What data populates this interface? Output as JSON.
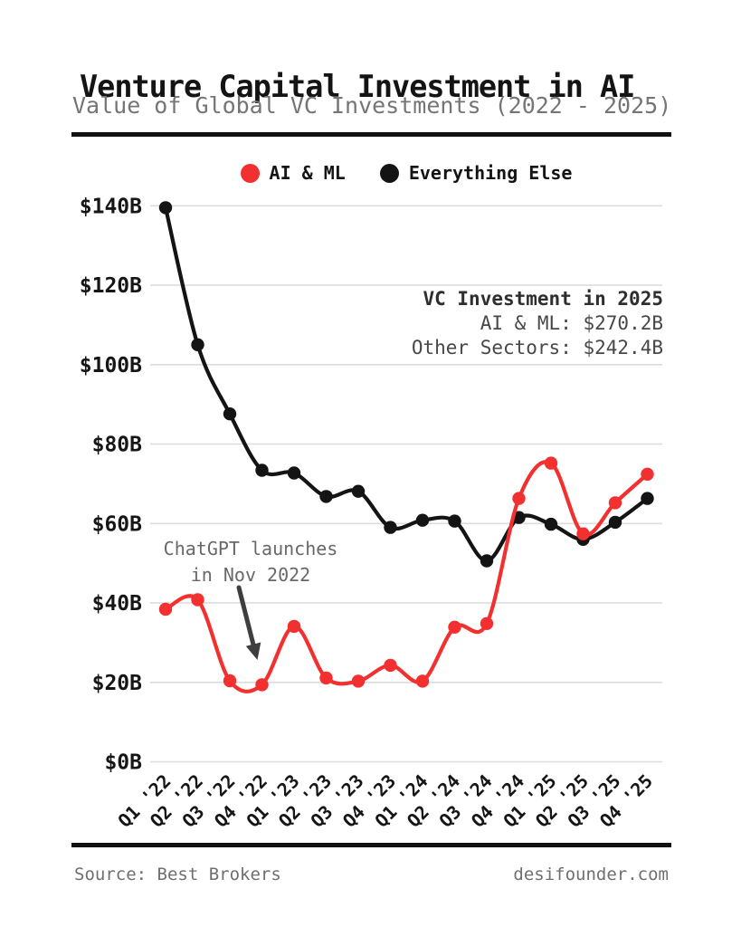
{
  "header": {
    "title": "Venture Capital Investment in AI",
    "subtitle": "Value of Global VC Investments (2022 - 2025)"
  },
  "legend": {
    "items": [
      {
        "label": "AI & ML",
        "color": "#f23030"
      },
      {
        "label": "Everything Else",
        "color": "#141414"
      }
    ]
  },
  "chart_data": {
    "type": "line",
    "title": "Venture Capital Investment in AI",
    "subtitle": "Value of Global VC Investments (2022 - 2025)",
    "categories": [
      "Q1 '22",
      "Q2 '22",
      "Q3 '22",
      "Q4 '22",
      "Q1 '23",
      "Q2 '23",
      "Q3 '23",
      "Q4 '23",
      "Q1 '24",
      "Q2 '24",
      "Q3 '24",
      "Q4 '24",
      "Q1 '25",
      "Q2 '25",
      "Q3 '25",
      "Q4 '25"
    ],
    "series": [
      {
        "name": "AI & ML",
        "color": "#f23030",
        "smooth": true,
        "values": [
          38.4,
          40.8,
          20.4,
          19.4,
          34.1,
          21.1,
          20.3,
          24.3,
          20.3,
          33.9,
          34.8,
          66.3,
          75.2,
          57.4,
          65.2,
          72.4
        ]
      },
      {
        "name": "Everything Else",
        "color": "#141414",
        "smooth": true,
        "values": [
          139.5,
          105.0,
          87.6,
          73.4,
          72.7,
          66.8,
          68.1,
          59.0,
          60.8,
          60.6,
          50.6,
          61.5,
          59.8,
          56.0,
          60.3,
          66.3
        ]
      }
    ],
    "y_axis": {
      "ticks": [
        0,
        20,
        40,
        60,
        80,
        100,
        120,
        140
      ],
      "tick_labels": [
        "$0B",
        "$20B",
        "$40B",
        "$60B",
        "$80B",
        "$100B",
        "$120B",
        "$140B"
      ],
      "ylim": [
        0,
        145
      ],
      "unit": "billion USD"
    },
    "grid": "horizontal",
    "legend_position": "top-center",
    "annotations": {
      "info_box": {
        "title": "VC Investment in 2025",
        "line_ai": "AI & ML: $270.2B",
        "line_other": "Other Sectors: $242.4B"
      },
      "event_note": {
        "line1": "ChatGPT launches",
        "line2": "in Nov 2022",
        "arrow_target_category": "Q4 '22"
      }
    }
  },
  "footer": {
    "source": "Source: Best Brokers",
    "site": "desifounder.com"
  }
}
